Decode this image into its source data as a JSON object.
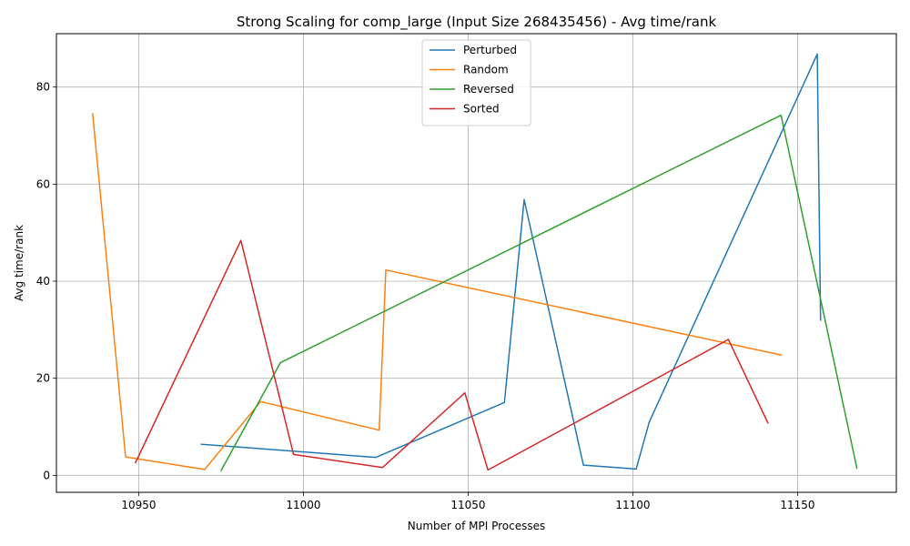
{
  "chart_data": {
    "type": "line",
    "title": "Strong Scaling for comp_large (Input Size 268435456) - Avg time/rank",
    "xlabel": "Number of MPI Processes",
    "ylabel": "Avg time/rank",
    "xlim": [
      10925,
      11180
    ],
    "ylim": [
      -3.5,
      91
    ],
    "xticks": [
      10950,
      11000,
      11050,
      11100,
      11150
    ],
    "yticks": [
      0,
      20,
      40,
      60,
      80
    ],
    "grid": true,
    "legend_position": "top-center",
    "series": [
      {
        "name": "Perturbed",
        "color": "#1f77b4",
        "points": [
          [
            10969,
            6.4
          ],
          [
            11022,
            3.7
          ],
          [
            11061,
            15.0
          ],
          [
            11067,
            56.8
          ],
          [
            11085,
            2.1
          ],
          [
            11101,
            1.3
          ],
          [
            11105,
            11.0
          ],
          [
            11156,
            86.8
          ],
          [
            11157,
            32.0
          ]
        ]
      },
      {
        "name": "Random",
        "color": "#ff7f0e",
        "points": [
          [
            10936,
            74.5
          ],
          [
            10946,
            3.8
          ],
          [
            10970,
            1.2
          ],
          [
            10987,
            15.2
          ],
          [
            11023,
            9.3
          ],
          [
            11025,
            42.3
          ],
          [
            11145,
            24.8
          ]
        ]
      },
      {
        "name": "Reversed",
        "color": "#2ca02c",
        "points": [
          [
            10975,
            1.0
          ],
          [
            10993,
            23.2
          ],
          [
            11145,
            74.2
          ],
          [
            11168,
            1.5
          ]
        ]
      },
      {
        "name": "Sorted",
        "color": "#d62728",
        "points": [
          [
            10949,
            2.6
          ],
          [
            10981,
            48.4
          ],
          [
            10997,
            4.3
          ],
          [
            11024,
            1.6
          ],
          [
            11049,
            17.0
          ],
          [
            11056,
            1.1
          ],
          [
            11129,
            28.0
          ],
          [
            11141,
            10.8
          ]
        ]
      }
    ]
  }
}
